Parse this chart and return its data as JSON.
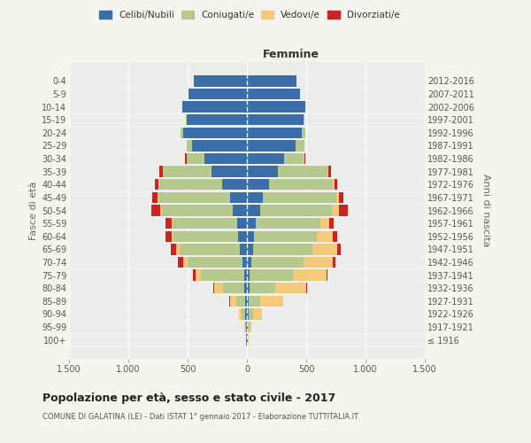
{
  "age_groups": [
    "100+",
    "95-99",
    "90-94",
    "85-89",
    "80-84",
    "75-79",
    "70-74",
    "65-69",
    "60-64",
    "55-59",
    "50-54",
    "45-49",
    "40-44",
    "35-39",
    "30-34",
    "25-29",
    "20-24",
    "15-19",
    "10-14",
    "5-9",
    "0-4"
  ],
  "birth_years": [
    "≤ 1916",
    "1917-1921",
    "1922-1926",
    "1927-1931",
    "1932-1936",
    "1937-1941",
    "1942-1946",
    "1947-1951",
    "1952-1956",
    "1957-1961",
    "1962-1966",
    "1967-1971",
    "1972-1976",
    "1977-1981",
    "1982-1986",
    "1987-1991",
    "1992-1996",
    "1997-2001",
    "2002-2006",
    "2007-2011",
    "2012-2016"
  ],
  "males_celibi": [
    5,
    8,
    12,
    15,
    20,
    25,
    40,
    60,
    75,
    85,
    120,
    145,
    210,
    300,
    360,
    460,
    540,
    510,
    545,
    490,
    450
  ],
  "males_coniugati": [
    3,
    8,
    35,
    75,
    185,
    360,
    460,
    510,
    545,
    540,
    600,
    600,
    530,
    410,
    150,
    45,
    18,
    4,
    0,
    0,
    0
  ],
  "males_vedovi": [
    1,
    4,
    18,
    55,
    70,
    45,
    35,
    25,
    18,
    12,
    8,
    6,
    4,
    2,
    1,
    1,
    1,
    0,
    0,
    0,
    0
  ],
  "males_divorziati": [
    0,
    0,
    2,
    4,
    6,
    25,
    45,
    45,
    45,
    48,
    75,
    45,
    35,
    25,
    8,
    4,
    2,
    0,
    0,
    0,
    0
  ],
  "females_nubili": [
    4,
    7,
    16,
    18,
    22,
    25,
    38,
    52,
    62,
    72,
    110,
    135,
    185,
    260,
    315,
    410,
    465,
    475,
    490,
    445,
    415
  ],
  "females_coniugate": [
    4,
    12,
    35,
    95,
    215,
    360,
    440,
    500,
    530,
    550,
    610,
    615,
    540,
    420,
    165,
    72,
    26,
    8,
    0,
    0,
    0
  ],
  "females_vedove": [
    4,
    18,
    75,
    190,
    265,
    285,
    248,
    210,
    132,
    74,
    55,
    26,
    12,
    8,
    4,
    2,
    1,
    0,
    0,
    0,
    0
  ],
  "females_divorziate": [
    0,
    0,
    2,
    4,
    4,
    8,
    18,
    27,
    37,
    38,
    75,
    36,
    26,
    22,
    8,
    4,
    2,
    0,
    0,
    0,
    0
  ],
  "colors_celibi": "#3b6ea8",
  "colors_coniugati": "#b5c98e",
  "colors_vedovi": "#f5c97a",
  "colors_divorziati": "#cc2222",
  "xlim": 1500,
  "xticks": [
    -1500,
    -1000,
    -500,
    0,
    500,
    1000,
    1500
  ],
  "xtick_labels": [
    "1.500",
    "1.000",
    "500",
    "0",
    "500",
    "1.000",
    "1.500"
  ],
  "title": "Popolazione per età, sesso e stato civile - 2017",
  "subtitle": "COMUNE DI GALATINA (LE) - Dati ISTAT 1° gennaio 2017 - Elaborazione TUTTITALIA.IT",
  "ylabel_left": "Fasce di età",
  "ylabel_right": "Anni di nascita",
  "label_femmine": "Femmine",
  "legend_labels": [
    "Celibi/Nubili",
    "Coniugati/e",
    "Vedovi/e",
    "Divorziati/e"
  ],
  "bg_color": "#f5f5f0",
  "plot_bg_color": "#ececea"
}
